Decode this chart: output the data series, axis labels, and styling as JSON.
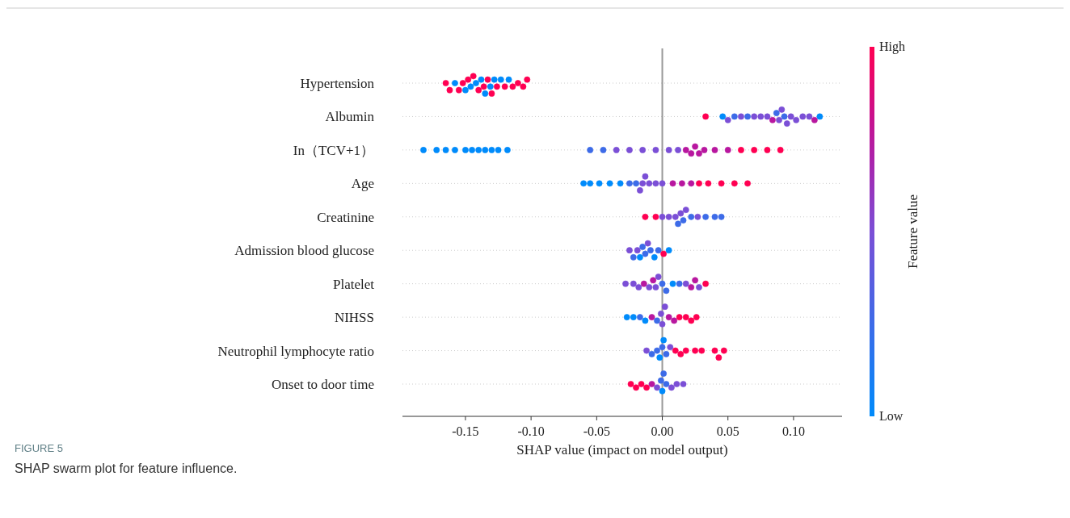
{
  "chart_data": {
    "type": "scatter",
    "orientation": "horizontal",
    "xlabel": "SHAP value (impact on model output)",
    "clabel": "Feature value",
    "annotations": [
      "FIGURE 5",
      "SHAP swarm plot for feature influence."
    ],
    "categories": [
      "Hypertension",
      "Albumin",
      "In（TCV+1）",
      "Age",
      "Creatinine",
      "Admission blood glucose",
      "Platelet",
      "NIHSS",
      "Neutrophil lymphocyte ratio",
      "Onset to door time"
    ],
    "xlim": [
      -0.198,
      0.137
    ],
    "xticks": [
      {
        "value": -0.15,
        "label": "-0.15"
      },
      {
        "value": -0.1,
        "label": "-0.10"
      },
      {
        "value": -0.05,
        "label": "-0.05"
      },
      {
        "value": 0,
        "label": "0.00"
      },
      {
        "value": 0.05,
        "label": "0.05"
      },
      {
        "value": 0.1,
        "label": "0.10"
      }
    ],
    "clim": [
      0,
      1
    ],
    "cticks": [
      {
        "value": 0,
        "label": "Low"
      },
      {
        "value": 1,
        "label": "High"
      }
    ],
    "grid": "y",
    "marker": "circle",
    "ref_lines": [
      {
        "axis": "x",
        "value": 0,
        "color": "#999999"
      }
    ],
    "series": [
      {
        "values": [
          -0.165,
          0.033,
          -0.182,
          -0.06,
          -0.013,
          -0.025,
          -0.028,
          -0.027,
          -0.012,
          -0.024
        ],
        "cvalues": [
          1,
          1,
          0,
          0,
          1,
          0.5,
          0.5,
          0,
          0.5,
          1
        ],
        "colors": [
          "#ff0052",
          "#ff0052",
          "#008bfb",
          "#008bfb",
          "#ff0052",
          "#7b4fd6",
          "#7b4fd6",
          "#008bfb",
          "#7b4fd6",
          "#ff0052"
        ]
      },
      {
        "values": [
          -0.162,
          0.046,
          -0.172,
          -0.055,
          -0.005,
          -0.022,
          -0.022,
          -0.022,
          -0.008,
          -0.02
        ],
        "cvalues": [
          1,
          0,
          0,
          0,
          1,
          0.25,
          0.5,
          0,
          0.25,
          1
        ],
        "colors": [
          "#ff0052",
          "#008bfb",
          "#008bfb",
          "#008bfb",
          "#ff0052",
          "#3d6be8",
          "#7b4fd6",
          "#008bfb",
          "#3d6be8",
          "#ff0052"
        ]
      },
      {
        "values": [
          -0.158,
          0.05,
          -0.165,
          -0.048,
          0,
          -0.019,
          -0.018,
          -0.017,
          -0.004,
          -0.016
        ],
        "cvalues": [
          0,
          0.5,
          0,
          0,
          0.5,
          0.5,
          0.5,
          0.25,
          0.25,
          1
        ],
        "colors": [
          "#008bfb",
          "#7b4fd6",
          "#008bfb",
          "#008bfb",
          "#7b4fd6",
          "#7b4fd6",
          "#7b4fd6",
          "#3d6be8",
          "#3d6be8",
          "#ff0052"
        ]
      },
      {
        "values": [
          -0.155,
          0.055,
          -0.158,
          -0.04,
          0.005,
          -0.017,
          -0.014,
          -0.013,
          -0.002,
          -0.012
        ],
        "cvalues": [
          1,
          0.25,
          0,
          0,
          0.5,
          0,
          0.75,
          0,
          0,
          1
        ],
        "colors": [
          "#ff0052",
          "#3d6be8",
          "#008bfb",
          "#008bfb",
          "#7b4fd6",
          "#008bfb",
          "#b8179f",
          "#008bfb",
          "#008bfb",
          "#ff0052"
        ]
      },
      {
        "values": [
          -0.152,
          0.06,
          -0.15,
          -0.032,
          0.01,
          -0.015,
          -0.01,
          -0.008,
          0,
          -0.008
        ],
        "cvalues": [
          1,
          0.5,
          0,
          0,
          0.5,
          0.25,
          0.5,
          0.75,
          0.25,
          0.75
        ],
        "colors": [
          "#ff0052",
          "#7b4fd6",
          "#008bfb",
          "#008bfb",
          "#7b4fd6",
          "#3d6be8",
          "#7b4fd6",
          "#b8179f",
          "#3d6be8",
          "#b8179f"
        ]
      },
      {
        "values": [
          -0.15,
          0.065,
          -0.145,
          -0.025,
          0.012,
          -0.013,
          -0.007,
          -0.004,
          0.001,
          -0.004
        ],
        "cvalues": [
          0,
          0.25,
          0,
          0.25,
          0.25,
          0.25,
          0.75,
          0.25,
          0,
          0.5
        ],
        "colors": [
          "#008bfb",
          "#3d6be8",
          "#008bfb",
          "#3d6be8",
          "#3d6be8",
          "#3d6be8",
          "#b8179f",
          "#3d6be8",
          "#008bfb",
          "#7b4fd6"
        ]
      },
      {
        "values": [
          -0.148,
          0.07,
          -0.14,
          -0.02,
          0.014,
          -0.011,
          -0.005,
          -0.001,
          0.003,
          -0.001
        ],
        "cvalues": [
          1,
          0.5,
          0,
          0.25,
          0.5,
          0.5,
          0.5,
          0.5,
          0.25,
          0.25
        ],
        "colors": [
          "#ff0052",
          "#7b4fd6",
          "#008bfb",
          "#3d6be8",
          "#7b4fd6",
          "#7b4fd6",
          "#7b4fd6",
          "#7b4fd6",
          "#3d6be8",
          "#3d6be8"
        ]
      },
      {
        "values": [
          -0.146,
          0.075,
          -0.135,
          -0.017,
          0.016,
          -0.009,
          -0.003,
          0,
          0.006,
          0
        ],
        "cvalues": [
          0,
          0.5,
          0,
          0.5,
          0.25,
          0.25,
          0.5,
          0.5,
          0.5,
          0
        ],
        "colors": [
          "#008bfb",
          "#7b4fd6",
          "#008bfb",
          "#7b4fd6",
          "#3d6be8",
          "#3d6be8",
          "#7b4fd6",
          "#7b4fd6",
          "#7b4fd6",
          "#008bfb"
        ]
      },
      {
        "values": [
          -0.144,
          0.08,
          -0.13,
          -0.015,
          0.018,
          -0.006,
          0,
          0.002,
          0.01,
          0.001
        ],
        "cvalues": [
          1,
          0.5,
          0,
          0.5,
          0.5,
          0,
          0.25,
          0.5,
          1,
          0.25
        ],
        "colors": [
          "#ff0052",
          "#7b4fd6",
          "#008bfb",
          "#7b4fd6",
          "#7b4fd6",
          "#008bfb",
          "#3d6be8",
          "#7b4fd6",
          "#ff0052",
          "#3d6be8"
        ]
      },
      {
        "values": [
          -0.142,
          0.084,
          -0.125,
          -0.013,
          0.022,
          -0.003,
          0.003,
          0.005,
          0.014,
          0.003
        ],
        "cvalues": [
          0,
          0.75,
          0,
          0.5,
          0.25,
          0.25,
          0.25,
          0.75,
          1,
          0.25
        ],
        "colors": [
          "#008bfb",
          "#b8179f",
          "#008bfb",
          "#7b4fd6",
          "#3d6be8",
          "#3d6be8",
          "#3d6be8",
          "#b8179f",
          "#ff0052",
          "#3d6be8"
        ]
      },
      {
        "values": [
          -0.14,
          0.087,
          -0.118,
          -0.01,
          0.027,
          0.001,
          0.008,
          0.009,
          0.018,
          0.007
        ],
        "cvalues": [
          1,
          0.25,
          0,
          0.5,
          0.5,
          1,
          0,
          0.75,
          1,
          0.5
        ],
        "colors": [
          "#ff0052",
          "#3d6be8",
          "#008bfb",
          "#7b4fd6",
          "#7b4fd6",
          "#ff0052",
          "#008bfb",
          "#b8179f",
          "#ff0052",
          "#7b4fd6"
        ]
      },
      {
        "values": [
          -0.138,
          0.089,
          -0.055,
          -0.005,
          0.033,
          0.005,
          0.013,
          0.013,
          0.025,
          0.011
        ],
        "cvalues": [
          0,
          0.5,
          0.25,
          0.5,
          0.25,
          0,
          0.25,
          1,
          1,
          0.5
        ],
        "colors": [
          "#008bfb",
          "#7b4fd6",
          "#3d6be8",
          "#7b4fd6",
          "#3d6be8",
          "#008bfb",
          "#3d6be8",
          "#ff0052",
          "#ff0052",
          "#7b4fd6"
        ]
      },
      {
        "values": [
          -0.136,
          0.091,
          -0.045,
          0,
          0.04,
          null,
          0.018,
          0.018,
          0.03,
          0.016
        ],
        "cvalues": [
          1,
          0.5,
          0.25,
          0.5,
          0.25,
          null,
          0.5,
          1,
          1,
          0.5
        ],
        "colors": [
          "#ff0052",
          "#7b4fd6",
          "#3d6be8",
          "#7b4fd6",
          "#3d6be8",
          null,
          "#7b4fd6",
          "#ff0052",
          "#ff0052",
          "#7b4fd6"
        ]
      },
      {
        "values": [
          -0.135,
          0.093,
          -0.035,
          0.008,
          0.045,
          null,
          0.022,
          0.022,
          0.04,
          null
        ],
        "cvalues": [
          0,
          0.25,
          0.5,
          0.75,
          0.25,
          null,
          0.75,
          1,
          1,
          null
        ],
        "colors": [
          "#008bfb",
          "#3d6be8",
          "#7b4fd6",
          "#b8179f",
          "#3d6be8",
          null,
          "#b8179f",
          "#ff0052",
          "#ff0052",
          null
        ]
      },
      {
        "values": [
          -0.133,
          0.095,
          -0.025,
          0.015,
          null,
          null,
          0.025,
          0.026,
          0.043,
          null
        ],
        "cvalues": [
          1,
          0.5,
          0.5,
          0.75,
          null,
          null,
          0.75,
          1,
          1,
          null
        ],
        "colors": [
          "#ff0052",
          "#7b4fd6",
          "#7b4fd6",
          "#b8179f",
          null,
          null,
          "#b8179f",
          "#ff0052",
          "#ff0052",
          null
        ]
      },
      {
        "values": [
          -0.131,
          0.098,
          -0.015,
          0.022,
          null,
          null,
          0.028,
          null,
          0.047,
          null
        ],
        "cvalues": [
          0,
          0.5,
          0.5,
          0.75,
          null,
          null,
          0.5,
          null,
          1,
          null
        ],
        "colors": [
          "#008bfb",
          "#7b4fd6",
          "#7b4fd6",
          "#b8179f",
          null,
          null,
          "#7b4fd6",
          null,
          "#ff0052",
          null
        ]
      },
      {
        "values": [
          -0.13,
          0.102,
          -0.005,
          0.028,
          null,
          null,
          0.033,
          null,
          null,
          null
        ],
        "cvalues": [
          1,
          0.5,
          0.5,
          1,
          null,
          null,
          1,
          null,
          null,
          null
        ],
        "colors": [
          "#ff0052",
          "#7b4fd6",
          "#7b4fd6",
          "#ff0052",
          null,
          null,
          "#ff0052",
          null,
          null,
          null
        ]
      },
      {
        "values": [
          -0.128,
          0.107,
          0.005,
          0.035,
          null,
          null,
          null,
          null,
          null,
          null
        ],
        "cvalues": [
          0,
          0.5,
          0.5,
          1,
          null,
          null,
          null,
          null,
          null,
          null
        ],
        "colors": [
          "#008bfb",
          "#7b4fd6",
          "#7b4fd6",
          "#ff0052",
          null,
          null,
          null,
          null,
          null,
          null
        ]
      },
      {
        "values": [
          -0.126,
          0.112,
          0.012,
          0.045,
          null,
          null,
          null,
          null,
          null,
          null
        ],
        "cvalues": [
          1,
          0.5,
          0.5,
          1,
          null,
          null,
          null,
          null,
          null,
          null
        ],
        "colors": [
          "#ff0052",
          "#7b4fd6",
          "#7b4fd6",
          "#ff0052",
          null,
          null,
          null,
          null,
          null,
          null
        ]
      },
      {
        "values": [
          -0.123,
          0.116,
          0.018,
          0.055,
          null,
          null,
          null,
          null,
          null,
          null
        ],
        "cvalues": [
          0,
          0.75,
          0.75,
          1,
          null,
          null,
          null,
          null,
          null,
          null
        ],
        "colors": [
          "#008bfb",
          "#b8179f",
          "#b8179f",
          "#ff0052",
          null,
          null,
          null,
          null,
          null,
          null
        ]
      },
      {
        "values": [
          -0.12,
          0.12,
          0.022,
          0.065,
          null,
          null,
          null,
          null,
          null,
          null
        ],
        "cvalues": [
          1,
          0,
          0.75,
          1,
          null,
          null,
          null,
          null,
          null,
          null
        ],
        "colors": [
          "#ff0052",
          "#008bfb",
          "#b8179f",
          "#ff0052",
          null,
          null,
          null,
          null,
          null,
          null
        ]
      },
      {
        "values": [
          -0.117,
          null,
          0.025,
          null,
          null,
          null,
          null,
          null,
          null,
          null
        ],
        "cvalues": [
          0,
          null,
          0.75,
          null,
          null,
          null,
          null,
          null,
          null,
          null
        ],
        "colors": [
          "#008bfb",
          null,
          "#b8179f",
          null,
          null,
          null,
          null,
          null,
          null,
          null
        ]
      },
      {
        "values": [
          -0.114,
          null,
          0.028,
          null,
          null,
          null,
          null,
          null,
          null,
          null
        ],
        "cvalues": [
          1,
          null,
          0.75,
          null,
          null,
          null,
          null,
          null,
          null,
          null
        ],
        "colors": [
          "#ff0052",
          null,
          "#b8179f",
          null,
          null,
          null,
          null,
          null,
          null,
          null
        ]
      },
      {
        "values": [
          -0.11,
          null,
          0.032,
          null,
          null,
          null,
          null,
          null,
          null,
          null
        ],
        "cvalues": [
          1,
          null,
          0.75,
          null,
          null,
          null,
          null,
          null,
          null,
          null
        ],
        "colors": [
          "#ff0052",
          null,
          "#b8179f",
          null,
          null,
          null,
          null,
          null,
          null,
          null
        ]
      },
      {
        "values": [
          -0.106,
          null,
          0.04,
          null,
          null,
          null,
          null,
          null,
          null,
          null
        ],
        "cvalues": [
          1,
          null,
          0.75,
          null,
          null,
          null,
          null,
          null,
          null,
          null
        ],
        "colors": [
          "#ff0052",
          null,
          "#b8179f",
          null,
          null,
          null,
          null,
          null,
          null,
          null
        ]
      },
      {
        "values": [
          -0.103,
          null,
          0.05,
          null,
          null,
          null,
          null,
          null,
          null,
          null
        ],
        "cvalues": [
          1,
          null,
          0.75,
          null,
          null,
          null,
          null,
          null,
          null,
          null
        ],
        "colors": [
          "#ff0052",
          null,
          "#b8179f",
          null,
          null,
          null,
          null,
          null,
          null,
          null
        ]
      },
      {
        "values": [
          null,
          null,
          0.06,
          null,
          null,
          null,
          null,
          null,
          null,
          null
        ],
        "cvalues": [
          null,
          null,
          1,
          null,
          null,
          null,
          null,
          null,
          null,
          null
        ],
        "colors": [
          null,
          null,
          "#ff0052",
          null,
          null,
          null,
          null,
          null,
          null,
          null
        ]
      },
      {
        "values": [
          null,
          null,
          0.07,
          null,
          null,
          null,
          null,
          null,
          null,
          null
        ],
        "cvalues": [
          null,
          null,
          1,
          null,
          null,
          null,
          null,
          null,
          null,
          null
        ],
        "colors": [
          null,
          null,
          "#ff0052",
          null,
          null,
          null,
          null,
          null,
          null,
          null
        ]
      },
      {
        "values": [
          null,
          null,
          0.08,
          null,
          null,
          null,
          null,
          null,
          null,
          null
        ],
        "cvalues": [
          null,
          null,
          1,
          null,
          null,
          null,
          null,
          null,
          null,
          null
        ],
        "colors": [
          null,
          null,
          "#ff0052",
          null,
          null,
          null,
          null,
          null,
          null,
          null
        ]
      },
      {
        "values": [
          null,
          null,
          0.09,
          null,
          null,
          null,
          null,
          null,
          null,
          null
        ],
        "cvalues": [
          null,
          null,
          1,
          null,
          null,
          null,
          null,
          null,
          null,
          null
        ],
        "colors": [
          null,
          null,
          "#ff0052",
          null,
          null,
          null,
          null,
          null,
          null,
          null
        ]
      }
    ]
  }
}
